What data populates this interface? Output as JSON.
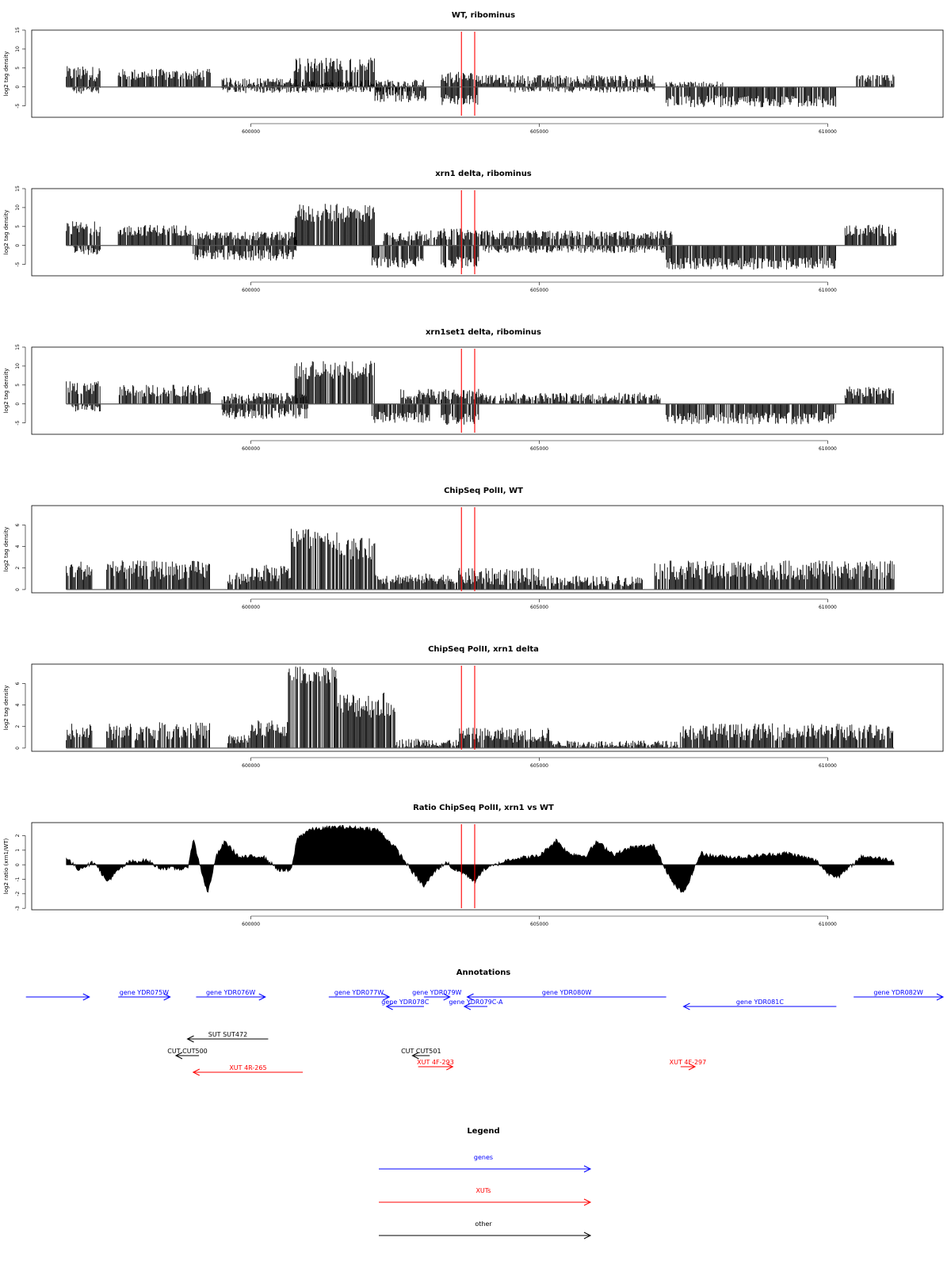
{
  "x_range": [
    596200,
    612000
  ],
  "x_ticks": [
    600000,
    605000,
    610000
  ],
  "x_tick_labels": [
    "600000",
    "605000",
    "610000"
  ],
  "colors": {
    "genes": "#0000ff",
    "XUTs": "#ff0000",
    "other": "#000000",
    "marker": "#ff0000"
  },
  "chart_data": [
    {
      "type": "bar",
      "title": "WT, ribominus",
      "ylabel": "log2 tag density",
      "ylim": [
        -8,
        15
      ],
      "yticks": [
        -5,
        0,
        5,
        10,
        15
      ],
      "ytick_labels": [
        "-5",
        "0",
        "5",
        "10",
        "15"
      ],
      "markers": [
        603650,
        603880
      ],
      "segments": [
        {
          "start": 596800,
          "end": 597400,
          "amp": 3.5,
          "var": 2.0
        },
        {
          "start": 596900,
          "end": 597400,
          "amp": -0.8,
          "var": 1.0
        },
        {
          "start": 597700,
          "end": 599300,
          "amp": 3.2,
          "var": 1.6
        },
        {
          "start": 599500,
          "end": 601000,
          "amp": 1.4,
          "var": 1.0
        },
        {
          "start": 599500,
          "end": 601000,
          "amp": -0.6,
          "var": 1.0
        },
        {
          "start": 601000,
          "end": 603000,
          "amp": 1.0,
          "var": 1.0
        },
        {
          "start": 601000,
          "end": 602800,
          "amp": -0.5,
          "var": 1.0
        },
        {
          "start": 600750,
          "end": 602150,
          "amp": 5.8,
          "var": 2.0
        },
        {
          "start": 602150,
          "end": 603050,
          "amp": -2.5,
          "var": 1.5
        },
        {
          "start": 603300,
          "end": 603950,
          "amp": 2.5,
          "var": 1.5
        },
        {
          "start": 603300,
          "end": 603950,
          "amp": -3.5,
          "var": 1.5
        },
        {
          "start": 603950,
          "end": 607000,
          "amp": 2.0,
          "var": 1.2
        },
        {
          "start": 604500,
          "end": 607000,
          "amp": -0.5,
          "var": 1.0
        },
        {
          "start": 607200,
          "end": 610150,
          "amp": -3.8,
          "var": 1.6
        },
        {
          "start": 607200,
          "end": 608200,
          "amp": 0.5,
          "var": 1.0
        },
        {
          "start": 610500,
          "end": 611150,
          "amp": 1.6,
          "var": 1.6
        }
      ]
    },
    {
      "type": "bar",
      "title": "xrn1 delta, ribominus",
      "ylabel": "log2 tag density",
      "ylim": [
        -8,
        15
      ],
      "yticks": [
        -5,
        0,
        5,
        10,
        15
      ],
      "ytick_labels": [
        "-5",
        "0",
        "5",
        "10",
        "15"
      ],
      "markers": [
        603650,
        603880
      ],
      "segments": [
        {
          "start": 596800,
          "end": 597400,
          "amp": 4.5,
          "var": 2.0
        },
        {
          "start": 596900,
          "end": 597400,
          "amp": -1.5,
          "var": 1.0
        },
        {
          "start": 597700,
          "end": 599000,
          "amp": 4.0,
          "var": 1.5
        },
        {
          "start": 599000,
          "end": 600800,
          "amp": 2.5,
          "var": 1.2
        },
        {
          "start": 599000,
          "end": 600800,
          "amp": -2.5,
          "var": 1.5
        },
        {
          "start": 600750,
          "end": 602150,
          "amp": 8.5,
          "var": 2.5
        },
        {
          "start": 602100,
          "end": 603000,
          "amp": -4.5,
          "var": 1.5
        },
        {
          "start": 602300,
          "end": 603300,
          "amp": 2.5,
          "var": 1.5
        },
        {
          "start": 603300,
          "end": 603950,
          "amp": 3.0,
          "var": 1.5
        },
        {
          "start": 603300,
          "end": 603950,
          "amp": -4.5,
          "var": 1.5
        },
        {
          "start": 603950,
          "end": 607300,
          "amp": 2.8,
          "var": 1.2
        },
        {
          "start": 604000,
          "end": 607200,
          "amp": -1.0,
          "var": 1.0
        },
        {
          "start": 607200,
          "end": 610150,
          "amp": -4.8,
          "var": 1.6
        },
        {
          "start": 610300,
          "end": 611200,
          "amp": 4.0,
          "var": 1.6
        }
      ]
    },
    {
      "type": "bar",
      "title": "xrn1set1 delta, ribominus",
      "ylabel": "log2 tag density",
      "ylim": [
        -8,
        15
      ],
      "yticks": [
        -5,
        0,
        5,
        10,
        15
      ],
      "ytick_labels": [
        "-5",
        "0",
        "5",
        "10",
        "15"
      ],
      "markers": [
        603650,
        603880
      ],
      "segments": [
        {
          "start": 596800,
          "end": 597400,
          "amp": 4.0,
          "var": 2.0
        },
        {
          "start": 596900,
          "end": 597400,
          "amp": -1.0,
          "var": 1.0
        },
        {
          "start": 597700,
          "end": 599300,
          "amp": 3.5,
          "var": 1.6
        },
        {
          "start": 599500,
          "end": 601000,
          "amp": 1.8,
          "var": 1.2
        },
        {
          "start": 599500,
          "end": 601000,
          "amp": -2.5,
          "var": 1.5
        },
        {
          "start": 600750,
          "end": 602150,
          "amp": 9.0,
          "var": 2.5
        },
        {
          "start": 602100,
          "end": 603100,
          "amp": -3.5,
          "var": 1.5
        },
        {
          "start": 602600,
          "end": 603300,
          "amp": 2.5,
          "var": 1.5
        },
        {
          "start": 603300,
          "end": 603950,
          "amp": 2.5,
          "var": 1.5
        },
        {
          "start": 603300,
          "end": 603950,
          "amp": -4.0,
          "var": 1.5
        },
        {
          "start": 603950,
          "end": 607100,
          "amp": 1.8,
          "var": 1.2
        },
        {
          "start": 607200,
          "end": 610150,
          "amp": -3.8,
          "var": 1.6
        },
        {
          "start": 610300,
          "end": 611150,
          "amp": 3.0,
          "var": 1.6
        }
      ]
    },
    {
      "type": "bar",
      "title": "ChipSeq PolII, WT",
      "ylabel": "log2 tag density",
      "ylim": [
        -0.3,
        7.8
      ],
      "yticks": [
        0,
        2,
        4,
        6
      ],
      "ytick_labels": [
        "0",
        "2",
        "4",
        "6"
      ],
      "markers": [
        603650,
        603880
      ],
      "segments": [
        {
          "start": 596800,
          "end": 597250,
          "amp": 1.8,
          "var": 0.9
        },
        {
          "start": 597500,
          "end": 598400,
          "amp": 1.8,
          "var": 0.9
        },
        {
          "start": 598400,
          "end": 599300,
          "amp": 1.8,
          "var": 0.9
        },
        {
          "start": 599600,
          "end": 600000,
          "amp": 1.0,
          "var": 0.6
        },
        {
          "start": 600000,
          "end": 600700,
          "amp": 1.5,
          "var": 0.8
        },
        {
          "start": 600700,
          "end": 601500,
          "amp": 4.8,
          "var": 1.0
        },
        {
          "start": 601500,
          "end": 602150,
          "amp": 3.8,
          "var": 1.0
        },
        {
          "start": 602150,
          "end": 603600,
          "amp": 1.0,
          "var": 0.5
        },
        {
          "start": 603600,
          "end": 605000,
          "amp": 1.2,
          "var": 0.8
        },
        {
          "start": 605000,
          "end": 606800,
          "amp": 0.8,
          "var": 0.5
        },
        {
          "start": 607000,
          "end": 608400,
          "amp": 1.8,
          "var": 0.9
        },
        {
          "start": 608400,
          "end": 611150,
          "amp": 1.8,
          "var": 0.9
        }
      ]
    },
    {
      "type": "bar",
      "title": "ChipSeq PolII, xrn1 delta",
      "ylabel": "log2 tag density",
      "ylim": [
        -0.3,
        7.8
      ],
      "yticks": [
        0,
        2,
        4,
        6
      ],
      "ytick_labels": [
        "0",
        "2",
        "4",
        "6"
      ],
      "markers": [
        603650,
        603880
      ],
      "segments": [
        {
          "start": 596800,
          "end": 597250,
          "amp": 1.5,
          "var": 0.8
        },
        {
          "start": 597500,
          "end": 598400,
          "amp": 1.5,
          "var": 0.8
        },
        {
          "start": 598400,
          "end": 599300,
          "amp": 1.6,
          "var": 0.8
        },
        {
          "start": 599600,
          "end": 600000,
          "amp": 0.8,
          "var": 0.5
        },
        {
          "start": 600000,
          "end": 600650,
          "amp": 1.8,
          "var": 0.8
        },
        {
          "start": 600650,
          "end": 601500,
          "amp": 6.8,
          "var": 0.8
        },
        {
          "start": 601500,
          "end": 602500,
          "amp": 4.0,
          "var": 1.2
        },
        {
          "start": 602500,
          "end": 603600,
          "amp": 0.5,
          "var": 0.4
        },
        {
          "start": 603600,
          "end": 605200,
          "amp": 1.2,
          "var": 0.7
        },
        {
          "start": 605200,
          "end": 607400,
          "amp": 0.4,
          "var": 0.3
        },
        {
          "start": 607400,
          "end": 608600,
          "amp": 1.5,
          "var": 0.8
        },
        {
          "start": 608600,
          "end": 611150,
          "amp": 1.5,
          "var": 0.8
        }
      ]
    },
    {
      "type": "area",
      "title": "Ratio ChipSeq PolII, xrn1 vs WT",
      "ylabel": "log2 ratio (xrn1/WT)",
      "ylim": [
        -3.1,
        2.9
      ],
      "yticks": [
        -3,
        -2,
        -1,
        0,
        1,
        2
      ],
      "ytick_labels": [
        "-3",
        "-2",
        "-1",
        "0",
        "1",
        "2"
      ],
      "markers": [
        603650,
        603880
      ],
      "x": [
        596800,
        597000,
        597300,
        597500,
        597700,
        597900,
        598200,
        598400,
        598900,
        599000,
        599100,
        599250,
        599400,
        599550,
        599800,
        600200,
        600500,
        600700,
        600800,
        601000,
        601500,
        602000,
        602200,
        602500,
        602800,
        603000,
        603200,
        603400,
        603500,
        603700,
        603900,
        604000,
        604500,
        605000,
        605300,
        605500,
        605800,
        606000,
        606300,
        606600,
        607000,
        607300,
        607500,
        607800,
        608000,
        608500,
        609000,
        609300,
        609800,
        610000,
        610200,
        610600,
        611150
      ],
      "y": [
        0.5,
        -0.3,
        0.2,
        -1.2,
        -0.4,
        0.2,
        0.3,
        -0.2,
        -0.3,
        1.8,
        0.2,
        -2.0,
        0.6,
        1.6,
        0.5,
        0.6,
        -0.4,
        -0.4,
        1.8,
        2.4,
        2.6,
        2.5,
        2.4,
        1.2,
        -0.5,
        -1.5,
        -0.4,
        0.2,
        -0.3,
        -0.6,
        -1.2,
        -0.4,
        0.4,
        0.6,
        1.7,
        0.8,
        0.6,
        1.6,
        0.7,
        1.2,
        1.3,
        -1.2,
        -2.0,
        0.8,
        0.6,
        0.5,
        0.7,
        0.8,
        0.3,
        -0.6,
        -0.8,
        0.6,
        0.3
      ]
    }
  ],
  "annotations": {
    "title": "Annotations",
    "features": [
      {
        "label": "",
        "start": 596100,
        "end": 597200,
        "dir": "fwd",
        "class": "genes",
        "row": 0
      },
      {
        "label": "gene YDR075W",
        "start": 597700,
        "end": 598600,
        "dir": "fwd",
        "class": "genes",
        "row": 0
      },
      {
        "label": "gene YDR076W",
        "start": 599050,
        "end": 600250,
        "dir": "fwd",
        "class": "genes",
        "row": 0
      },
      {
        "label": "gene YDR077W",
        "start": 601350,
        "end": 602400,
        "dir": "fwd",
        "class": "genes",
        "row": 0
      },
      {
        "label": "gene YDR079W",
        "start": 603000,
        "end": 603450,
        "dir": "fwd",
        "class": "genes",
        "row": 0
      },
      {
        "label": "gene YDR080W",
        "start": 603750,
        "end": 607200,
        "dir": "rev",
        "class": "genes",
        "row": 0
      },
      {
        "label": "gene YDR082W",
        "start": 610450,
        "end": 612000,
        "dir": "fwd",
        "class": "genes",
        "row": 0
      },
      {
        "label": "gene YDR078C",
        "start": 602350,
        "end": 603000,
        "dir": "rev",
        "class": "genes",
        "row": 1
      },
      {
        "label": "gene YDR079C-A",
        "start": 603700,
        "end": 604100,
        "dir": "rev",
        "class": "genes",
        "row": 1
      },
      {
        "label": "gene YDR081C",
        "start": 607500,
        "end": 610150,
        "dir": "rev",
        "class": "genes",
        "row": 1
      },
      {
        "label": "SUT SUT472",
        "start": 598900,
        "end": 600300,
        "dir": "rev",
        "class": "other",
        "row": 2
      },
      {
        "label": "CUT CUT500",
        "start": 598700,
        "end": 599100,
        "dir": "rev",
        "class": "other",
        "row": 3
      },
      {
        "label": "CUT CUT501",
        "start": 602800,
        "end": 603100,
        "dir": "rev",
        "class": "other",
        "row": 3
      },
      {
        "label": "XUT 4R-265",
        "start": 599000,
        "end": 600900,
        "dir": "rev",
        "class": "XUTs",
        "row": 5
      },
      {
        "label": "XUT 4F-293",
        "start": 602900,
        "end": 603500,
        "dir": "fwd",
        "class": "XUTs",
        "row": 4
      },
      {
        "label": "XUT 4F-297",
        "start": 607450,
        "end": 607700,
        "dir": "fwd",
        "class": "XUTs",
        "row": 4
      }
    ]
  },
  "legend": {
    "title": "Legend",
    "entries": [
      {
        "label": "genes",
        "class": "genes"
      },
      {
        "label": "XUTs",
        "class": "XUTs"
      },
      {
        "label": "other",
        "class": "other"
      }
    ]
  }
}
